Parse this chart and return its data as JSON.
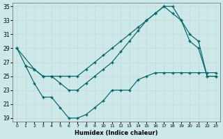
{
  "xlabel": "Humidex (Indice chaleur)",
  "xlim": [
    -0.5,
    23.5
  ],
  "ylim": [
    18.5,
    35.5
  ],
  "yticks": [
    19,
    21,
    23,
    25,
    27,
    29,
    31,
    33,
    35
  ],
  "xticks": [
    0,
    1,
    2,
    3,
    4,
    5,
    6,
    7,
    8,
    9,
    10,
    11,
    12,
    13,
    14,
    15,
    16,
    17,
    18,
    19,
    20,
    21,
    22,
    23
  ],
  "background_color": "#cce8e8",
  "grid_color": "#d4e8e8",
  "line_color": "#006666",
  "line1_x": [
    0,
    1,
    2,
    3,
    4,
    5,
    6,
    7,
    8,
    9,
    10,
    11,
    12,
    13,
    14,
    15,
    16,
    17,
    18,
    19,
    20,
    21,
    22,
    23
  ],
  "line1_y": [
    29,
    26.5,
    26,
    25,
    25,
    25,
    25,
    25,
    26,
    27,
    28,
    29,
    30,
    31,
    32,
    33,
    34,
    35,
    34,
    33,
    31,
    30,
    25,
    25
  ],
  "line2_x": [
    0,
    2,
    3,
    4,
    5,
    6,
    7,
    8,
    9,
    10,
    11,
    12,
    13,
    14,
    15,
    16,
    17,
    18,
    19,
    20,
    21,
    22,
    23
  ],
  "line2_y": [
    29,
    26,
    25,
    25,
    24,
    23,
    23,
    24,
    25,
    26,
    27,
    28.5,
    30,
    31.5,
    33,
    34,
    35,
    35,
    33,
    30,
    29,
    25,
    25
  ],
  "line3_x": [
    1,
    2,
    3,
    4,
    5,
    6,
    7,
    8,
    9,
    10,
    11,
    12,
    13,
    14,
    15,
    16,
    17,
    18,
    19,
    20,
    21,
    22,
    23
  ],
  "line3_y": [
    26.5,
    24,
    22,
    22,
    20.5,
    19,
    19,
    19.5,
    20.5,
    21.5,
    23,
    23,
    23,
    24.5,
    25,
    25.5,
    25.5,
    25.5,
    25.5,
    25.5,
    25.5,
    25.5,
    25.5
  ]
}
